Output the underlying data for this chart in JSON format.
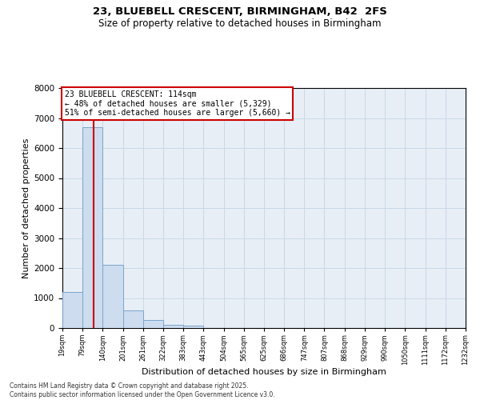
{
  "title1": "23, BLUEBELL CRESCENT, BIRMINGHAM, B42  2FS",
  "title2": "Size of property relative to detached houses in Birmingham",
  "xlabel": "Distribution of detached houses by size in Birmingham",
  "ylabel": "Number of detached properties",
  "annotation_title": "23 BLUEBELL CRESCENT: 114sqm",
  "annotation_line1": "← 48% of detached houses are smaller (5,329)",
  "annotation_line2": "51% of semi-detached houses are larger (5,660) →",
  "property_size": 114,
  "bin_edges": [
    19,
    79,
    140,
    201,
    261,
    322,
    383,
    443,
    504,
    565,
    625,
    686,
    747,
    807,
    868,
    929,
    990,
    1050,
    1111,
    1172,
    1232
  ],
  "bar_heights": [
    1200,
    6700,
    2100,
    580,
    280,
    120,
    80,
    10,
    5,
    2,
    2,
    1,
    0,
    0,
    0,
    0,
    0,
    0,
    0,
    0
  ],
  "bar_color": "#cddcee",
  "bar_edge_color": "#7aa5cc",
  "red_line_color": "#cc0000",
  "grid_color": "#c8d8e8",
  "background_color": "#e8eef6",
  "annotation_box_color": "#ffffff",
  "annotation_box_edge": "#cc0000",
  "ylim": [
    0,
    8000
  ],
  "yticks": [
    0,
    1000,
    2000,
    3000,
    4000,
    5000,
    6000,
    7000,
    8000
  ],
  "footer1": "Contains HM Land Registry data © Crown copyright and database right 2025.",
  "footer2": "Contains public sector information licensed under the Open Government Licence v3.0."
}
